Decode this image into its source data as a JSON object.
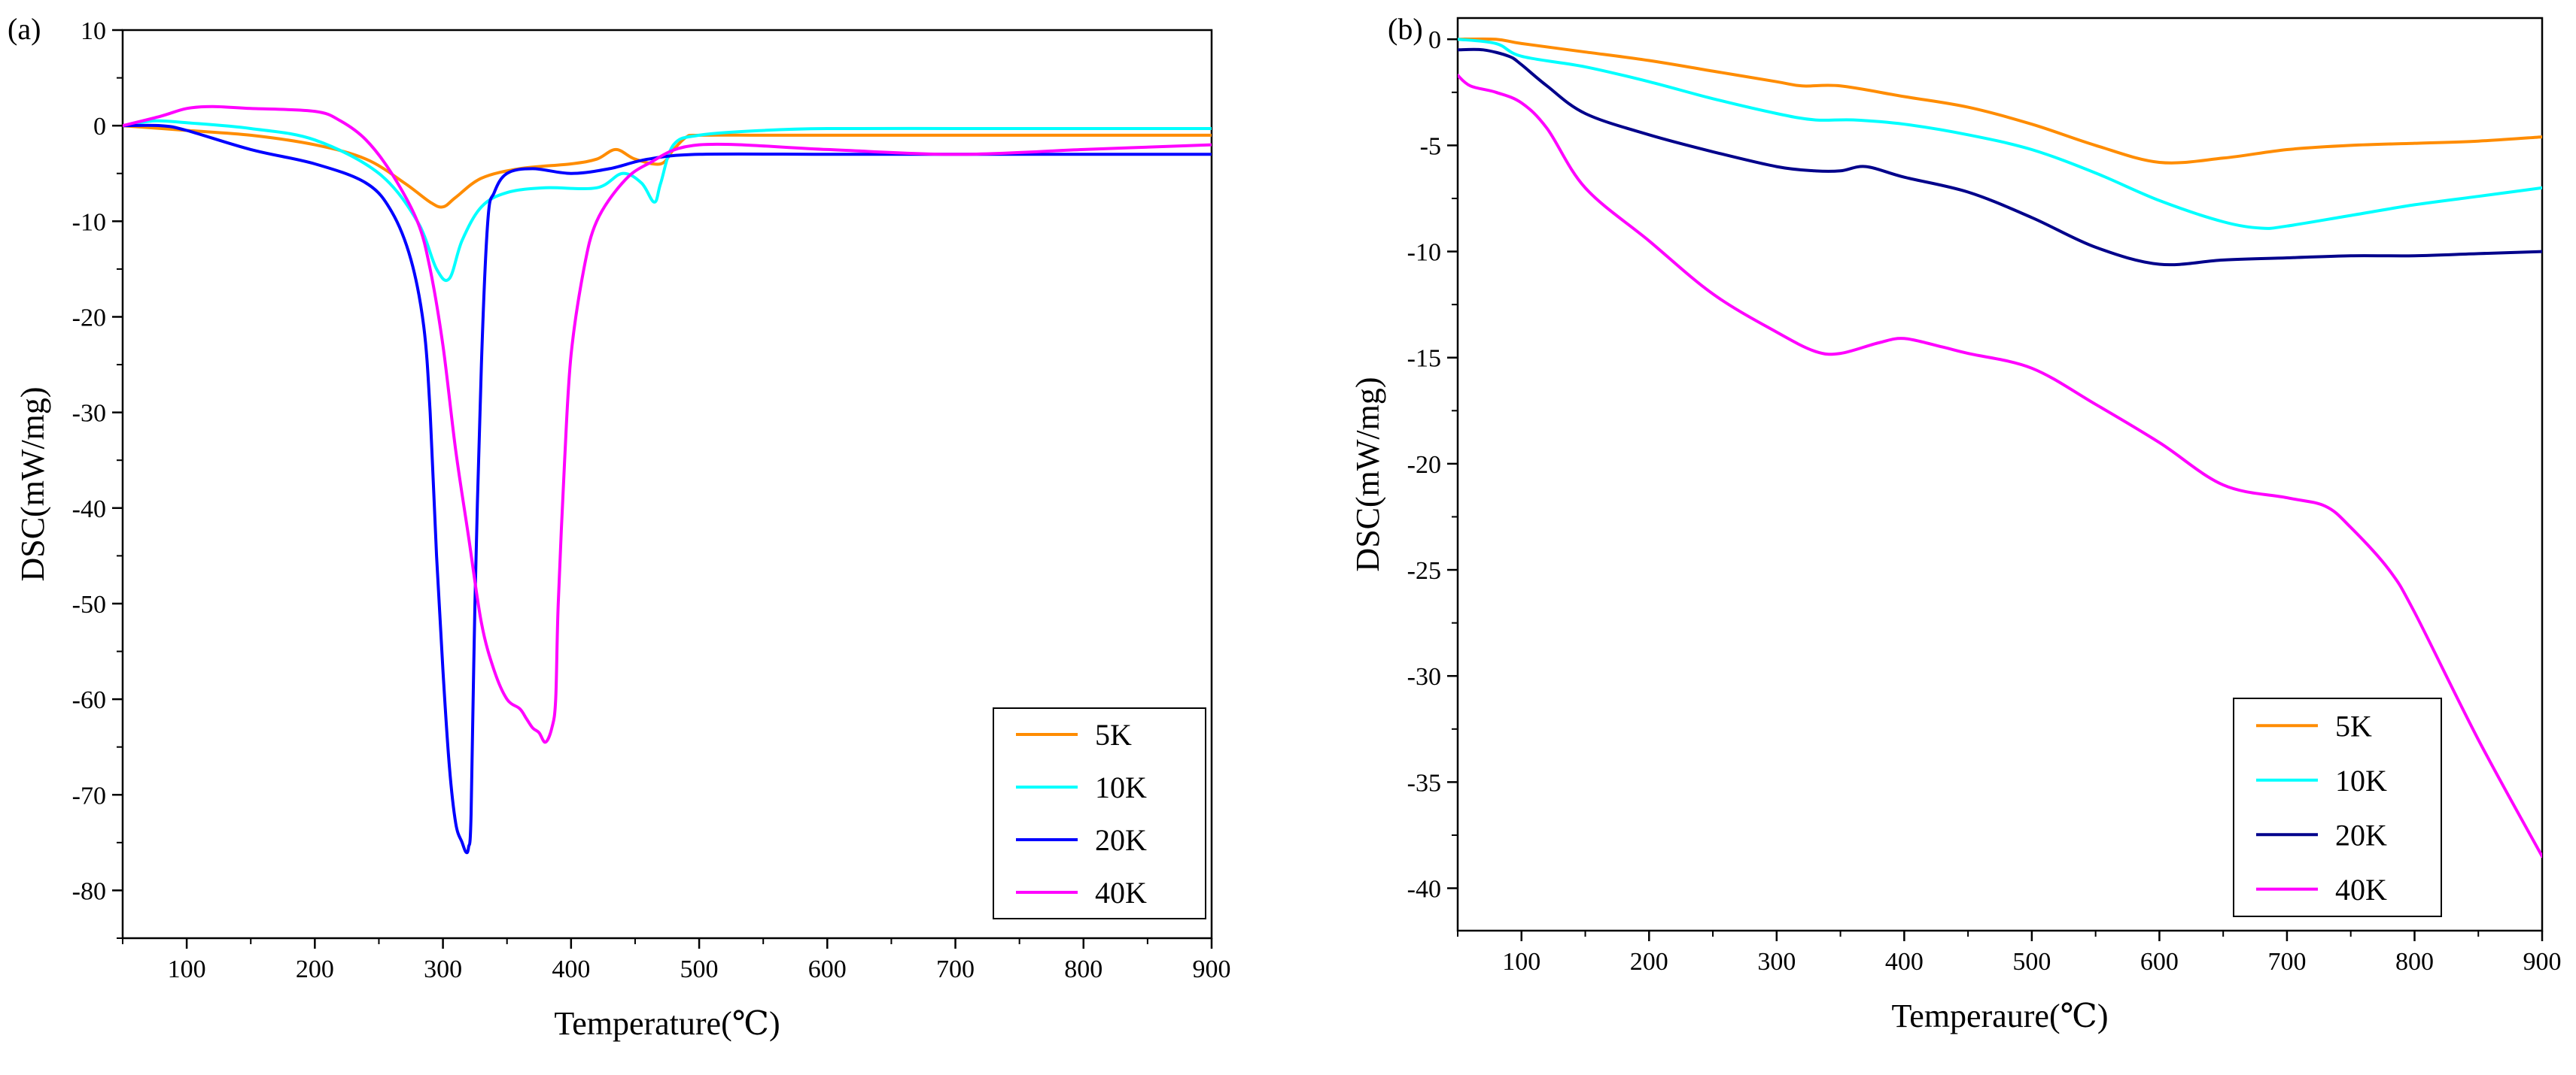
{
  "chart_data": [
    {
      "type": "line",
      "panel_label": "(a)",
      "xlabel": "Temperature(℃)",
      "ylabel": "DSC(mW/mg)",
      "xlim": [
        50,
        900
      ],
      "ylim": [
        -85,
        10
      ],
      "xticks": [
        100,
        200,
        300,
        400,
        500,
        600,
        700,
        800,
        900
      ],
      "yticks": [
        10,
        0,
        -10,
        -20,
        -30,
        -40,
        -50,
        -60,
        -70,
        -80
      ],
      "legend_position": "bottom-right",
      "series": [
        {
          "name": "5K",
          "color": "#FF8C00",
          "x": [
            50,
            100,
            150,
            200,
            240,
            270,
            290,
            300,
            310,
            330,
            360,
            400,
            420,
            435,
            450,
            470,
            480,
            490,
            500,
            550,
            600,
            700,
            800,
            900
          ],
          "y": [
            0,
            -0.5,
            -1,
            -2,
            -3.5,
            -6,
            -8,
            -8.5,
            -7.5,
            -5.5,
            -4.5,
            -4,
            -3.5,
            -2.5,
            -3.5,
            -4,
            -2.5,
            -1.2,
            -1,
            -1,
            -1,
            -1,
            -1,
            -1
          ]
        },
        {
          "name": "10K",
          "color": "#00FFFF",
          "x": [
            50,
            75,
            100,
            150,
            200,
            250,
            280,
            295,
            305,
            315,
            330,
            350,
            380,
            420,
            440,
            455,
            465,
            470,
            480,
            500,
            550,
            600,
            700,
            800,
            900
          ],
          "y": [
            0,
            0.5,
            0.3,
            -0.3,
            -1.5,
            -5,
            -10,
            -15,
            -16,
            -12,
            -8.5,
            -7,
            -6.5,
            -6.5,
            -5,
            -6,
            -8,
            -6,
            -2,
            -1,
            -0.5,
            -0.3,
            -0.3,
            -0.3,
            -0.3
          ]
        },
        {
          "name": "20K",
          "color": "#0000FF",
          "x": [
            50,
            80,
            100,
            150,
            200,
            240,
            260,
            275,
            285,
            290,
            295,
            300,
            305,
            310,
            315,
            318,
            320,
            322,
            325,
            330,
            335,
            340,
            350,
            370,
            400,
            430,
            460,
            500,
            600,
            700,
            800,
            900
          ],
          "y": [
            0,
            0,
            -0.5,
            -2.5,
            -4,
            -6,
            -9,
            -14,
            -21,
            -30,
            -45,
            -57,
            -67,
            -73,
            -75,
            -76,
            -75.5,
            -72,
            -50,
            -25,
            -10,
            -7,
            -5,
            -4.5,
            -5,
            -4.5,
            -3.5,
            -3,
            -3,
            -3,
            -3,
            -3
          ]
        },
        {
          "name": "40K",
          "color": "#FF00FF",
          "x": [
            50,
            80,
            100,
            120,
            150,
            200,
            220,
            240,
            260,
            280,
            290,
            300,
            310,
            320,
            330,
            340,
            350,
            360,
            365,
            370,
            375,
            380,
            385,
            388,
            390,
            395,
            400,
            410,
            420,
            440,
            460,
            500,
            600,
            700,
            800,
            900
          ],
          "y": [
            0,
            1,
            1.8,
            2,
            1.8,
            1.5,
            0.5,
            -1.5,
            -5,
            -10,
            -15,
            -23,
            -34,
            -43,
            -52,
            -57,
            -60,
            -61,
            -62,
            -63,
            -63.5,
            -64.5,
            -63,
            -60,
            -50,
            -35,
            -24,
            -15,
            -10,
            -6,
            -4,
            -2,
            -2.5,
            -3,
            -2.5,
            -2
          ]
        }
      ]
    },
    {
      "type": "line",
      "panel_label": "(b)",
      "xlabel": "Temperaure(℃)",
      "ylabel": "DSC(mW/mg)",
      "xlim": [
        50,
        900
      ],
      "ylim": [
        -42,
        1
      ],
      "xticks": [
        100,
        200,
        300,
        400,
        500,
        600,
        700,
        800,
        900
      ],
      "yticks": [
        0,
        -5,
        -10,
        -15,
        -20,
        -25,
        -30,
        -35,
        -40
      ],
      "legend_position": "bottom-right",
      "series": [
        {
          "name": "5K",
          "color": "#FF8C00",
          "x": [
            50,
            80,
            100,
            150,
            200,
            250,
            300,
            320,
            350,
            400,
            450,
            500,
            550,
            600,
            650,
            700,
            750,
            800,
            850,
            900
          ],
          "y": [
            0,
            0,
            -0.2,
            -0.6,
            -1,
            -1.5,
            -2,
            -2.2,
            -2.2,
            -2.7,
            -3.2,
            -4,
            -5,
            -5.8,
            -5.6,
            -5.2,
            -5,
            -4.9,
            -4.8,
            -4.6
          ]
        },
        {
          "name": "10K",
          "color": "#00FFFF",
          "x": [
            50,
            80,
            100,
            150,
            200,
            250,
            300,
            330,
            360,
            400,
            450,
            500,
            550,
            600,
            650,
            680,
            700,
            750,
            800,
            850,
            900
          ],
          "y": [
            0,
            -0.2,
            -0.8,
            -1.3,
            -2,
            -2.8,
            -3.5,
            -3.8,
            -3.8,
            -4,
            -4.5,
            -5.2,
            -6.3,
            -7.6,
            -8.6,
            -8.9,
            -8.8,
            -8.3,
            -7.8,
            -7.4,
            -7
          ]
        },
        {
          "name": "20K",
          "color": "#00008B",
          "x": [
            50,
            70,
            90,
            100,
            120,
            150,
            200,
            250,
            300,
            330,
            350,
            370,
            400,
            450,
            500,
            550,
            600,
            650,
            700,
            750,
            800,
            850,
            900
          ],
          "y": [
            -0.5,
            -0.5,
            -0.8,
            -1.2,
            -2.2,
            -3.5,
            -4.5,
            -5.3,
            -6,
            -6.2,
            -6.2,
            -6,
            -6.5,
            -7.2,
            -8.4,
            -9.8,
            -10.6,
            -10.4,
            -10.3,
            -10.2,
            -10.2,
            -10.1,
            -10
          ]
        },
        {
          "name": "40K",
          "color": "#FF00FF",
          "x": [
            50,
            60,
            80,
            100,
            120,
            150,
            200,
            250,
            300,
            330,
            350,
            380,
            400,
            430,
            450,
            500,
            550,
            600,
            650,
            700,
            730,
            750,
            780,
            800,
            850,
            900
          ],
          "y": [
            -1.7,
            -2.2,
            -2.5,
            -3,
            -4.2,
            -7,
            -9.5,
            -12,
            -13.8,
            -14.7,
            -14.8,
            -14.3,
            -14.1,
            -14.5,
            -14.8,
            -15.5,
            -17.2,
            -19,
            -21,
            -21.6,
            -22,
            -23,
            -25,
            -27,
            -33,
            -38.5
          ]
        }
      ]
    }
  ]
}
